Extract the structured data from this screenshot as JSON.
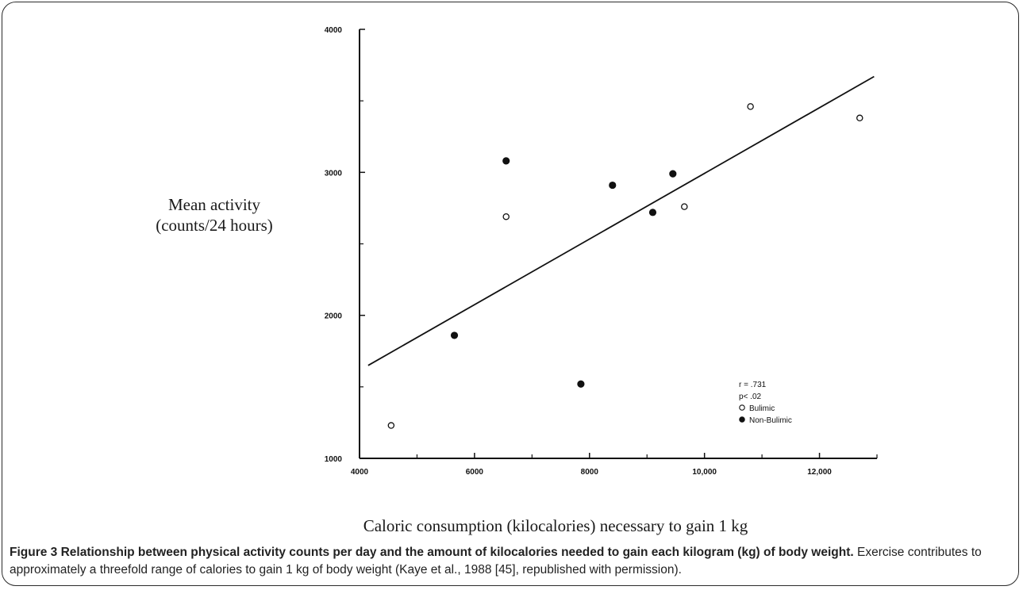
{
  "chart_data": {
    "type": "scatter",
    "ylabel_line1": "Mean activity",
    "ylabel_line2": "(counts/24 hours)",
    "xlabel": "Caloric consumption (kilocalories) necessary to gain 1 kg",
    "xlim": [
      4000,
      13000
    ],
    "ylim": [
      1000,
      4000
    ],
    "x_ticks": [
      4000,
      6000,
      8000,
      10000,
      12000
    ],
    "x_tick_labels": [
      "4000",
      "6000",
      "8000",
      "10,000",
      "12,000"
    ],
    "y_ticks": [
      1000,
      2000,
      3000,
      4000
    ],
    "y_tick_labels": [
      "1000",
      "2000",
      "3000",
      "4000"
    ],
    "series": [
      {
        "name": "Bulimic",
        "marker": "open",
        "points": [
          {
            "x": 4550,
            "y": 1230
          },
          {
            "x": 6550,
            "y": 2690
          },
          {
            "x": 9650,
            "y": 2760
          },
          {
            "x": 10800,
            "y": 3460
          },
          {
            "x": 12700,
            "y": 3380
          }
        ]
      },
      {
        "name": "Non-Bulimic",
        "marker": "filled",
        "points": [
          {
            "x": 5650,
            "y": 1860
          },
          {
            "x": 6550,
            "y": 3080
          },
          {
            "x": 7850,
            "y": 1520
          },
          {
            "x": 8400,
            "y": 2910
          },
          {
            "x": 9100,
            "y": 2720
          },
          {
            "x": 9450,
            "y": 2990
          }
        ]
      }
    ],
    "regression_line": {
      "x1": 4150,
      "y1": 1650,
      "x2": 12950,
      "y2": 3670
    },
    "legend": {
      "position": "bottom-right",
      "stats": [
        "r = .731",
        "p< .02"
      ],
      "entries": [
        "Bulimic",
        "Non-Bulimic"
      ]
    },
    "grid": false
  },
  "caption": {
    "bold": "Figure 3 Relationship between physical activity counts per day and the amount of kilocalories needed to gain each kilogram (kg) of body weight.",
    "text": " Exercise contributes to approximately a threefold range of calories to gain 1 kg of body weight (Kaye et al., 1988 [45], republished with permission)."
  }
}
